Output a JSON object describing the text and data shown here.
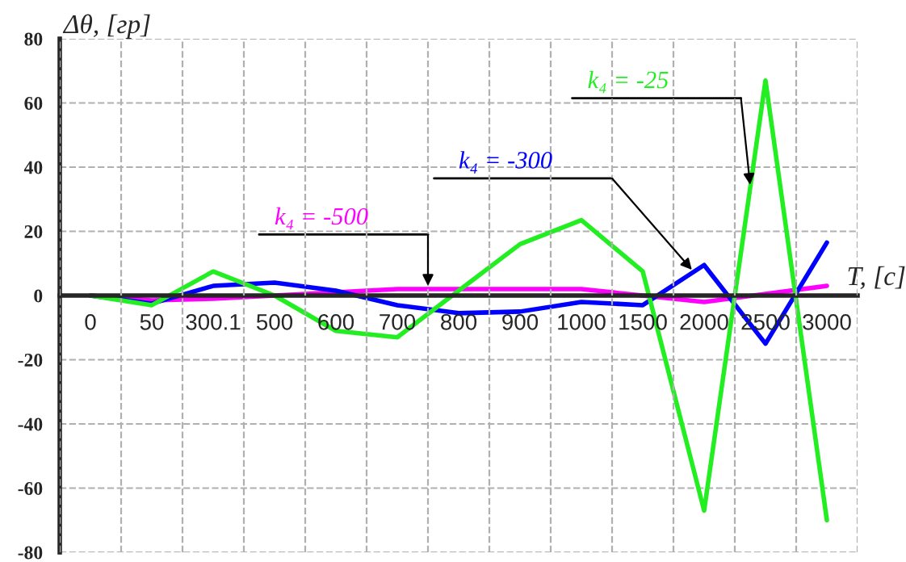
{
  "chart_data": {
    "type": "line",
    "xlabel": "T, [c]",
    "ylabel": "Δθ, [гр]",
    "categories": [
      "0",
      "50",
      "300.1",
      "500",
      "600",
      "700",
      "800",
      "900",
      "1000",
      "1500",
      "2000",
      "2500",
      "3000"
    ],
    "series": [
      {
        "name": "k₄ = -500",
        "color": "#ff00ff",
        "values": [
          0,
          -1.5,
          -1,
          0,
          1,
          2,
          2,
          2,
          2,
          0,
          -2,
          0.5,
          3
        ]
      },
      {
        "name": "k₄ = -300",
        "color": "#0000ff",
        "values": [
          0,
          -2.5,
          3,
          4,
          1.5,
          -3,
          -5.5,
          -5,
          -2,
          -3,
          9.5,
          -15,
          16.5
        ]
      },
      {
        "name": "k₄ = -25",
        "color": "#22ee22",
        "values": [
          0,
          -3,
          7.5,
          0,
          -11,
          -13,
          1.5,
          16,
          23.5,
          7.5,
          -67,
          67,
          -70
        ]
      }
    ],
    "ylim": [
      -80,
      80
    ],
    "yticks": [
      -80,
      -60,
      -40,
      -20,
      0,
      20,
      40,
      60,
      80
    ],
    "grid": true,
    "legend": false,
    "marker": "none",
    "line_style": "solid"
  }
}
